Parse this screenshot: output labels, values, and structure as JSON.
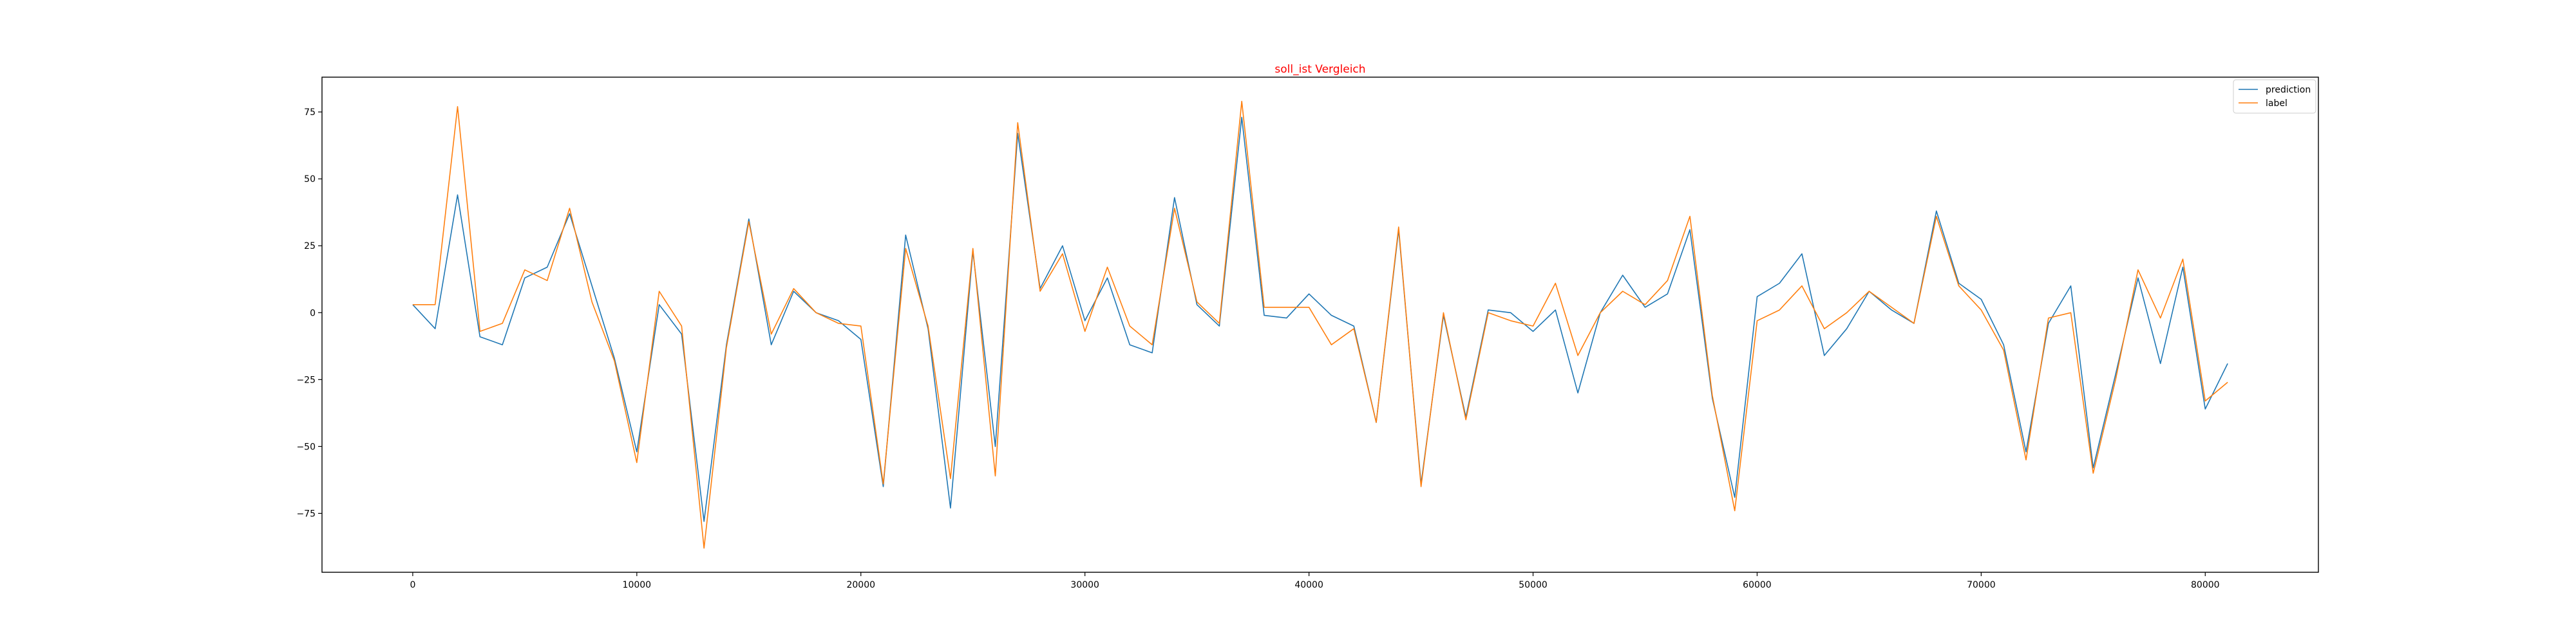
{
  "chart_data": {
    "type": "line",
    "title": "soll_ist Vergleich",
    "title_color": "#ff0000",
    "xlabel": "",
    "ylabel": "",
    "xlim": [
      -4050,
      85050
    ],
    "ylim": [
      -97,
      88
    ],
    "x_ticks": [
      0,
      10000,
      20000,
      30000,
      40000,
      50000,
      60000,
      70000,
      80000
    ],
    "x_tick_labels": [
      "0",
      "10000",
      "20000",
      "30000",
      "40000",
      "50000",
      "60000",
      "70000",
      "80000"
    ],
    "y_ticks": [
      -75,
      -50,
      -25,
      0,
      25,
      50,
      75
    ],
    "y_tick_labels": [
      "−75",
      "−50",
      "−25",
      "0",
      "25",
      "50",
      "75"
    ],
    "grid": false,
    "legend_position": "top-right",
    "x": [
      0,
      1000,
      2000,
      3000,
      4000,
      5000,
      6000,
      7000,
      8000,
      9000,
      10000,
      11000,
      12000,
      13000,
      14000,
      15000,
      16000,
      17000,
      18000,
      19000,
      20000,
      21000,
      22000,
      23000,
      24000,
      25000,
      26000,
      27000,
      28000,
      29000,
      30000,
      31000,
      32000,
      33000,
      34000,
      35000,
      36000,
      37000,
      38000,
      39000,
      40000,
      41000,
      42000,
      43000,
      44000,
      45000,
      46000,
      47000,
      48000,
      49000,
      50000,
      51000,
      52000,
      53000,
      54000,
      55000,
      56000,
      57000,
      58000,
      59000,
      60000,
      61000,
      62000,
      63000,
      64000,
      65000,
      66000,
      67000,
      68000,
      69000,
      70000,
      71000,
      72000,
      73000,
      74000,
      75000,
      76000,
      77000,
      78000,
      79000,
      80000,
      81000
    ],
    "series": [
      {
        "name": "prediction",
        "color": "#1f77b4",
        "values": [
          3,
          -6,
          44,
          -9,
          -12,
          13,
          17,
          37,
          10,
          -17,
          -52,
          3,
          -8,
          -78,
          -12,
          35,
          -12,
          8,
          0,
          -3,
          -10,
          -65,
          29,
          -6,
          -73,
          23,
          -50,
          67,
          9,
          25,
          -3,
          13,
          -12,
          -15,
          43,
          3,
          -5,
          73,
          -1,
          -2,
          7,
          -1,
          -5,
          -41,
          31,
          -64,
          -1,
          -39,
          1,
          0,
          -7,
          1,
          -30,
          0,
          14,
          2,
          7,
          31,
          -32,
          -69,
          6,
          11,
          22,
          -16,
          -6,
          8,
          1,
          -4,
          38,
          11,
          5,
          -12,
          -52,
          -4,
          10,
          -58,
          -23,
          13,
          -19,
          17,
          -36,
          -19
        ]
      },
      {
        "name": "label",
        "color": "#ff7f0e",
        "values": [
          3,
          3,
          77,
          -7,
          -4,
          16,
          12,
          39,
          4,
          -18,
          -56,
          8,
          -5,
          -88,
          -13,
          34,
          -8,
          9,
          0,
          -4,
          -5,
          -64,
          24,
          -5,
          -62,
          24,
          -61,
          71,
          8,
          22,
          -7,
          17,
          -5,
          -12,
          39,
          4,
          -4,
          79,
          2,
          2,
          2,
          -12,
          -6,
          -41,
          32,
          -65,
          0,
          -40,
          0,
          -3,
          -5,
          11,
          -16,
          0,
          8,
          3,
          12,
          36,
          -31,
          -74,
          -3,
          1,
          10,
          -6,
          0,
          8,
          2,
          -4,
          36,
          10,
          1,
          -14,
          -55,
          -2,
          0,
          -60,
          -25,
          16,
          -2,
          20,
          -33,
          -26
        ]
      }
    ]
  }
}
